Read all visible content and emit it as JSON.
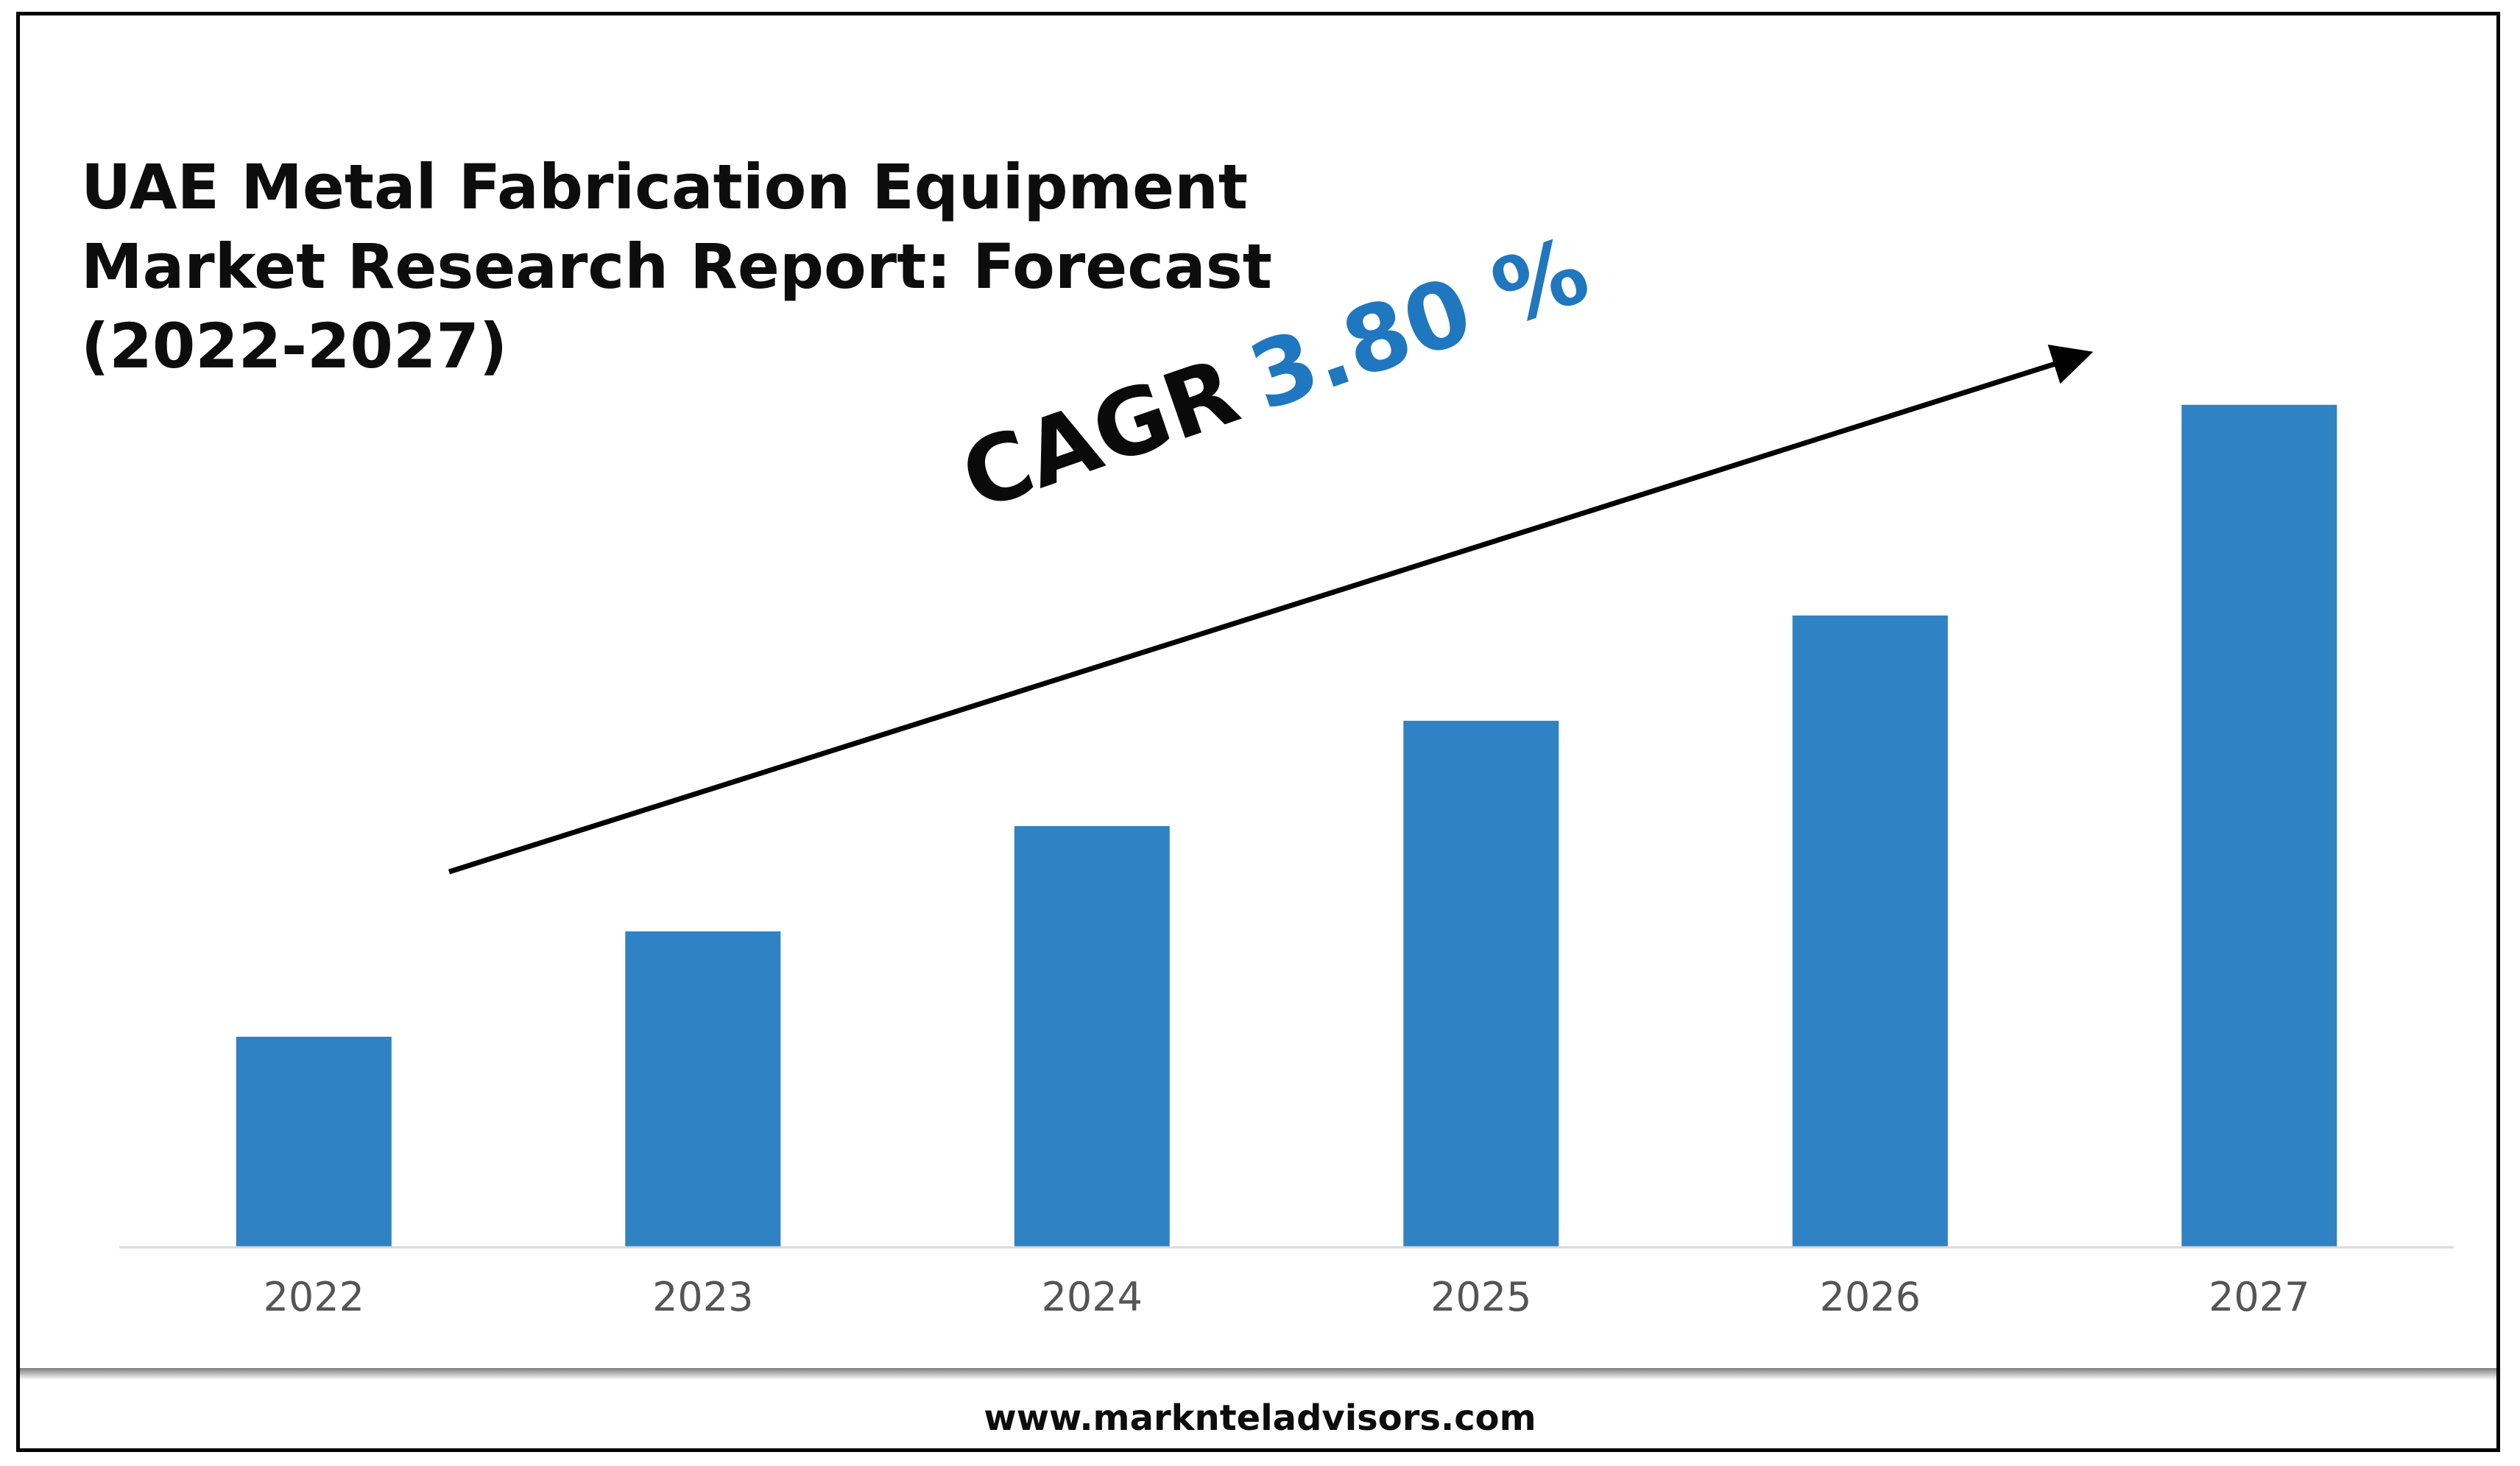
{
  "chart_data": {
    "type": "bar",
    "title": "UAE Metal Fabrication Equipment Market Research Report: Forecast (2022-2027)",
    "title_lines": [
      "UAE Metal Fabrication Equipment",
      "Market Research Report: Forecast",
      "(2022-2027)"
    ],
    "categories": [
      "2022",
      "2023",
      "2024",
      "2025",
      "2026",
      "2027"
    ],
    "values": [
      1.0,
      1.5,
      2.0,
      2.5,
      3.0,
      4.0
    ],
    "ylim": [
      0,
      4.3
    ],
    "xlabel": "",
    "ylabel": "",
    "grid": false,
    "legend": "none",
    "bar_color": "#2f83c4",
    "annotation": {
      "label": "CAGR",
      "value": "3.80 %",
      "label_color": "#0a0a0a",
      "value_color": "#1f77c0"
    }
  },
  "footer": {
    "url": "www.marknteladvisors.com"
  }
}
